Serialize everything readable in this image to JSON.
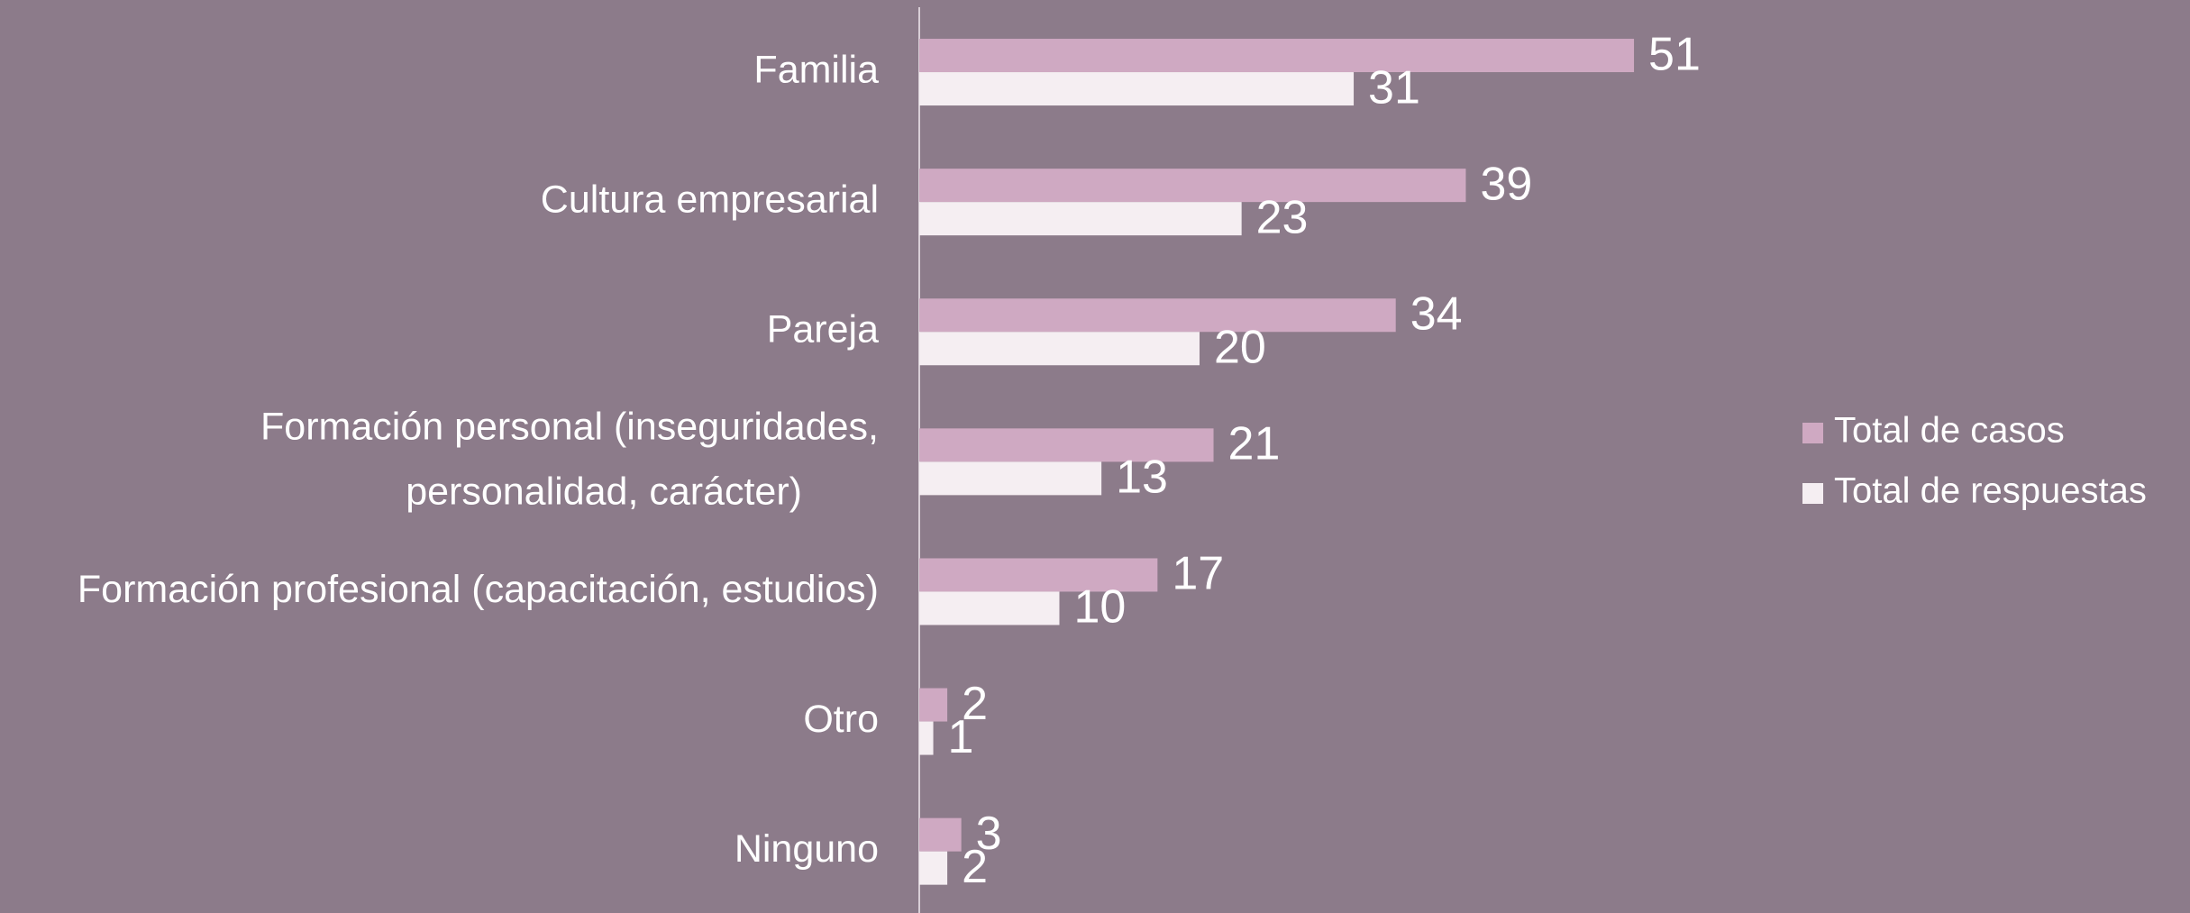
{
  "chart_data": {
    "type": "hbar",
    "categories": [
      "Familia",
      "Cultura empresarial",
      "Pareja",
      "Formación personal (inseguridades,\npersonalidad, carácter)",
      "Formación profesional (capacitación, estudios)",
      "Otro",
      "Ninguno"
    ],
    "series": [
      {
        "name": "Total de casos",
        "color": "#cfa9c2",
        "values": [
          51,
          39,
          34,
          21,
          17,
          2,
          3
        ]
      },
      {
        "name": "Total de respuestas",
        "color": "#f5eef2",
        "values": [
          31,
          23,
          20,
          13,
          10,
          1,
          2
        ]
      }
    ],
    "xlim": [
      0,
      60
    ],
    "legend": "right"
  }
}
